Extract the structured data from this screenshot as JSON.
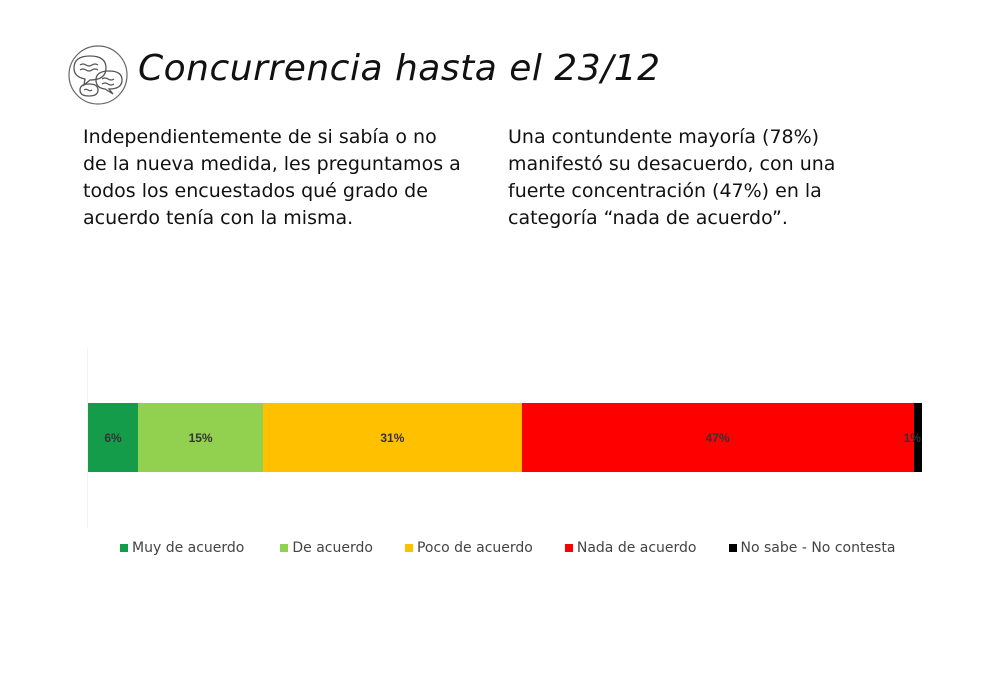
{
  "header": {
    "title": "Concurrencia hasta el 23/12"
  },
  "intro": {
    "left_lines": [
      "Independientemente de si sabía o no",
      "de la nueva medida, les preguntamos a",
      "todos los encuestados qué grado de",
      "acuerdo tenía con la misma."
    ],
    "right_lines": [
      "Una contundente mayoría (78%)",
      "manifestó su desacuerdo, con una",
      "fuerte concentración (47%) en la",
      "categoría “nada de acuerdo”."
    ]
  },
  "chart_data": {
    "type": "bar",
    "orientation": "horizontal",
    "stacked": true,
    "normalized": true,
    "categories": [
      ""
    ],
    "series": [
      {
        "name": "Muy de acuerdo",
        "values": [
          6
        ],
        "label": "6%",
        "color": "#149c4a"
      },
      {
        "name": "De acuerdo",
        "values": [
          15
        ],
        "label": "15%",
        "color": "#92d050"
      },
      {
        "name": "Poco de acuerdo",
        "values": [
          31
        ],
        "label": "31%",
        "color": "#ffc000"
      },
      {
        "name": "Nada de acuerdo",
        "values": [
          47
        ],
        "label": "47%",
        "color": "#ff0000"
      },
      {
        "name": "No sabe - No contesta",
        "values": [
          1
        ],
        "label": "1%",
        "color": "#000000"
      }
    ],
    "legend_position": "bottom",
    "grid": false
  }
}
